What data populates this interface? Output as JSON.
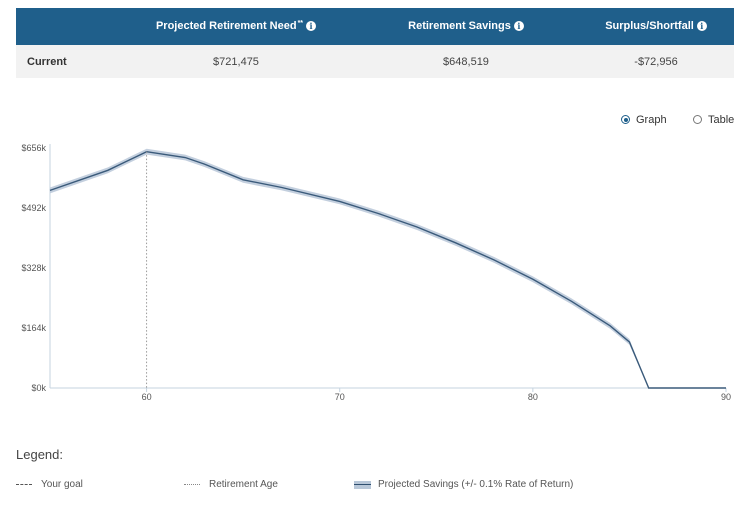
{
  "summary": {
    "headers": {
      "label": "",
      "need": "Projected Retirement Need",
      "need_mark": "**",
      "savings": "Retirement Savings",
      "surplus": "Surplus/Shortfall"
    },
    "info_glyph": "i",
    "row": {
      "label": "Current",
      "need": "$721,475",
      "savings": "$648,519",
      "surplus": "-$72,956"
    }
  },
  "view_toggle": {
    "graph": "Graph",
    "table": "Table",
    "selected": "graph"
  },
  "chart_data": {
    "type": "area",
    "x": [
      55,
      58,
      60,
      62,
      63,
      65,
      67,
      70,
      72,
      74,
      76,
      78,
      80,
      82,
      84,
      85,
      86,
      88,
      90
    ],
    "series": [
      {
        "name": "Projected Savings (+/- 0.1% Rate of Return)",
        "values": [
          540,
          595,
          646,
          630,
          612,
          569,
          548,
          510,
          477,
          440,
          397,
          350,
          297,
          237,
          170,
          126,
          0,
          0,
          0
        ],
        "band": 8
      }
    ],
    "yticks": [
      0,
      164,
      328,
      492,
      656
    ],
    "ytick_labels": [
      "$0k",
      "$164k",
      "$328k",
      "$492k",
      "$656k"
    ],
    "xticks": [
      60,
      70,
      80,
      90
    ],
    "xtick_labels": [
      "60",
      "70",
      "80",
      "90"
    ],
    "xlim": [
      55,
      90
    ],
    "ylim": [
      0,
      656
    ],
    "retirement_age": 60,
    "colors": {
      "line": "#3a5a7a",
      "band": "#b8c7d8",
      "axis": "#c5d3df",
      "marker": "#999999"
    }
  },
  "legend": {
    "title": "Legend:",
    "items": [
      "Your goal",
      "Retirement Age",
      "Projected Savings (+/- 0.1% Rate of Return)"
    ]
  }
}
